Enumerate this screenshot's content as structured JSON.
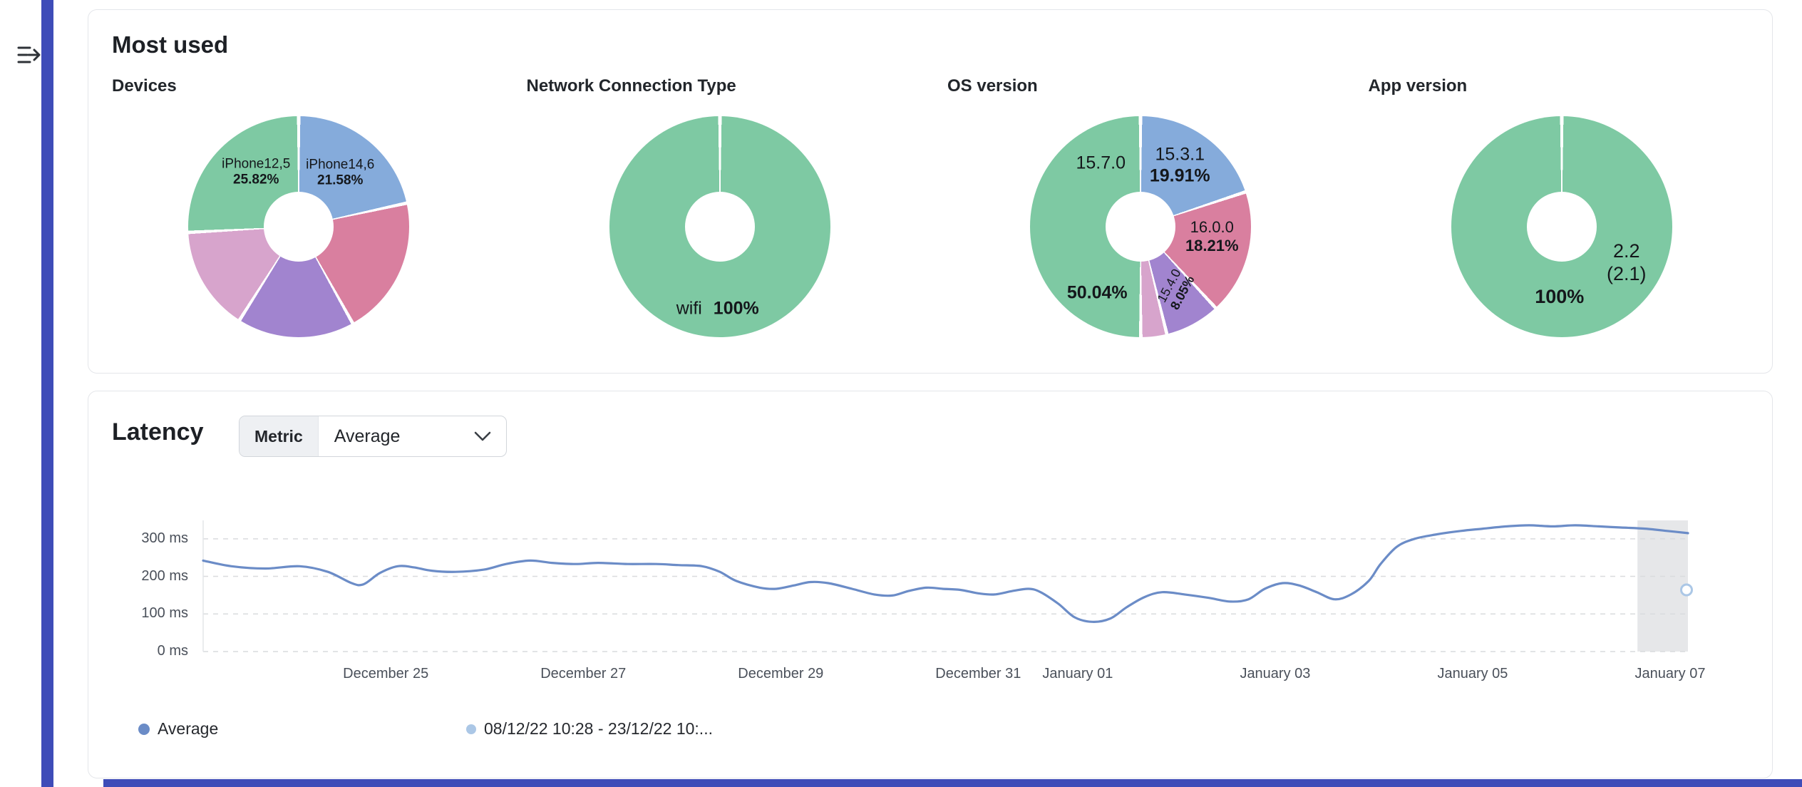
{
  "colors": {
    "sidebar": "#3e4cb8",
    "card_border": "#e4e6ea",
    "grid": "#d9dbde",
    "axis_text": "#4a505a",
    "highlight_band": "#e6e7e9"
  },
  "most_used": {
    "title": "Most used",
    "charts": [
      {
        "title": "Devices",
        "type": "donut",
        "slices": [
          {
            "name": "iPhone14,6",
            "pct": 21.58,
            "color": "#85abdb"
          },
          {
            "name": "",
            "pct": 20.3,
            "color": "#d97f9f"
          },
          {
            "name": "",
            "pct": 17.1,
            "color": "#a184cf"
          },
          {
            "name": "",
            "pct": 15.2,
            "color": "#d7a4cc"
          },
          {
            "name": "iPhone12,5",
            "pct": 25.82,
            "color": "#7ec9a3"
          }
        ],
        "labels": [
          {
            "text": "iPhone14,6",
            "pct": "21.58%"
          },
          {
            "text": "iPhone12,5",
            "pct": "25.82%"
          }
        ]
      },
      {
        "title": "Network Connection Type",
        "type": "donut",
        "slices": [
          {
            "name": "wifi",
            "pct": 100,
            "color": "#7ec9a3"
          }
        ],
        "labels": [
          {
            "text": "wifi",
            "pct": "100%"
          }
        ]
      },
      {
        "title": "OS version",
        "type": "donut",
        "slices": [
          {
            "name": "15.3.1",
            "pct": 19.91,
            "color": "#85abdb"
          },
          {
            "name": "16.0.0",
            "pct": 18.21,
            "color": "#d97f9f"
          },
          {
            "name": "15.4.0",
            "pct": 8.05,
            "color": "#a184cf"
          },
          {
            "name": "",
            "pct": 3.79,
            "color": "#d7a4cc"
          },
          {
            "name": "15.7.0",
            "pct": 50.04,
            "color": "#7ec9a3"
          }
        ],
        "labels": [
          {
            "text": "15.3.1",
            "pct": "19.91%"
          },
          {
            "text": "16.0.0",
            "pct": "18.21%"
          },
          {
            "text": "15.4.0",
            "pct": "8.05%"
          },
          {
            "text": "15.7.0",
            "pct": "50.04%"
          }
        ]
      },
      {
        "title": "App version",
        "type": "donut",
        "slices": [
          {
            "name": "2.2 (2.1)",
            "pct": 100,
            "color": "#7ec9a3"
          }
        ],
        "labels": [
          {
            "text": "2.2",
            "text2": "(2.1)",
            "pct": "100%"
          }
        ]
      }
    ]
  },
  "latency": {
    "title": "Latency",
    "metric_label": "Metric",
    "metric_value": "Average",
    "legend": [
      {
        "label": "Average",
        "color": "#6b8cc7"
      },
      {
        "label": "08/12/22 10:28 - 23/12/22 10:...",
        "color": "#abc7e6"
      }
    ],
    "chart_data": {
      "type": "line",
      "unit": "ms",
      "ylim": [
        0,
        349
      ],
      "grid": "dashed",
      "y_ticks": [
        {
          "label": "0 ms",
          "value": 0
        },
        {
          "label": "100 ms",
          "value": 100
        },
        {
          "label": "200 ms",
          "value": 200
        },
        {
          "label": "300 ms",
          "value": 300
        }
      ],
      "x_ticks": [
        {
          "label": "December 25",
          "x": 0.123
        },
        {
          "label": "December 27",
          "x": 0.256
        },
        {
          "label": "December 29",
          "x": 0.389
        },
        {
          "label": "December 31",
          "x": 0.522
        },
        {
          "label": "January 01",
          "x": 0.589
        },
        {
          "label": "January 03",
          "x": 0.722
        },
        {
          "label": "January 05",
          "x": 0.855
        },
        {
          "label": "January 07",
          "x": 0.988
        }
      ],
      "series": [
        {
          "name": "Average",
          "color": "#6b8cc7",
          "points": [
            [
              0.0,
              242
            ],
            [
              0.019,
              227
            ],
            [
              0.042,
              221
            ],
            [
              0.065,
              227
            ],
            [
              0.084,
              212
            ],
            [
              0.1,
              182
            ],
            [
              0.108,
              179
            ],
            [
              0.119,
              209
            ],
            [
              0.131,
              227
            ],
            [
              0.142,
              224
            ],
            [
              0.154,
              215
            ],
            [
              0.17,
              212
            ],
            [
              0.189,
              218
            ],
            [
              0.204,
              233
            ],
            [
              0.22,
              242
            ],
            [
              0.235,
              236
            ],
            [
              0.251,
              233
            ],
            [
              0.266,
              236
            ],
            [
              0.286,
              233
            ],
            [
              0.305,
              233
            ],
            [
              0.32,
              230
            ],
            [
              0.336,
              227
            ],
            [
              0.348,
              212
            ],
            [
              0.359,
              188
            ],
            [
              0.375,
              170
            ],
            [
              0.386,
              167
            ],
            [
              0.398,
              176
            ],
            [
              0.409,
              185
            ],
            [
              0.421,
              182
            ],
            [
              0.437,
              167
            ],
            [
              0.452,
              152
            ],
            [
              0.464,
              149
            ],
            [
              0.475,
              161
            ],
            [
              0.487,
              170
            ],
            [
              0.498,
              167
            ],
            [
              0.51,
              164
            ],
            [
              0.522,
              155
            ],
            [
              0.533,
              152
            ],
            [
              0.545,
              161
            ],
            [
              0.556,
              167
            ],
            [
              0.564,
              158
            ],
            [
              0.576,
              127
            ],
            [
              0.587,
              91
            ],
            [
              0.599,
              79
            ],
            [
              0.611,
              88
            ],
            [
              0.622,
              118
            ],
            [
              0.634,
              145
            ],
            [
              0.646,
              158
            ],
            [
              0.661,
              152
            ],
            [
              0.677,
              143
            ],
            [
              0.692,
              133
            ],
            [
              0.704,
              139
            ],
            [
              0.715,
              167
            ],
            [
              0.727,
              182
            ],
            [
              0.738,
              176
            ],
            [
              0.75,
              158
            ],
            [
              0.762,
              139
            ],
            [
              0.773,
              152
            ],
            [
              0.785,
              188
            ],
            [
              0.793,
              233
            ],
            [
              0.804,
              279
            ],
            [
              0.816,
              300
            ],
            [
              0.831,
              312
            ],
            [
              0.847,
              321
            ],
            [
              0.862,
              327
            ],
            [
              0.878,
              333
            ],
            [
              0.893,
              336
            ],
            [
              0.909,
              333
            ],
            [
              0.924,
              336
            ],
            [
              0.94,
              333
            ],
            [
              0.955,
              330
            ],
            [
              0.971,
              327
            ],
            [
              0.986,
              321
            ],
            [
              1.0,
              315
            ]
          ]
        }
      ],
      "comparison_marker": {
        "x": 1.0,
        "value": 164,
        "color": "#abc7e6"
      },
      "highlight_band": {
        "from": 0.966,
        "to": 1.0,
        "color": "#e6e7e9"
      }
    }
  }
}
